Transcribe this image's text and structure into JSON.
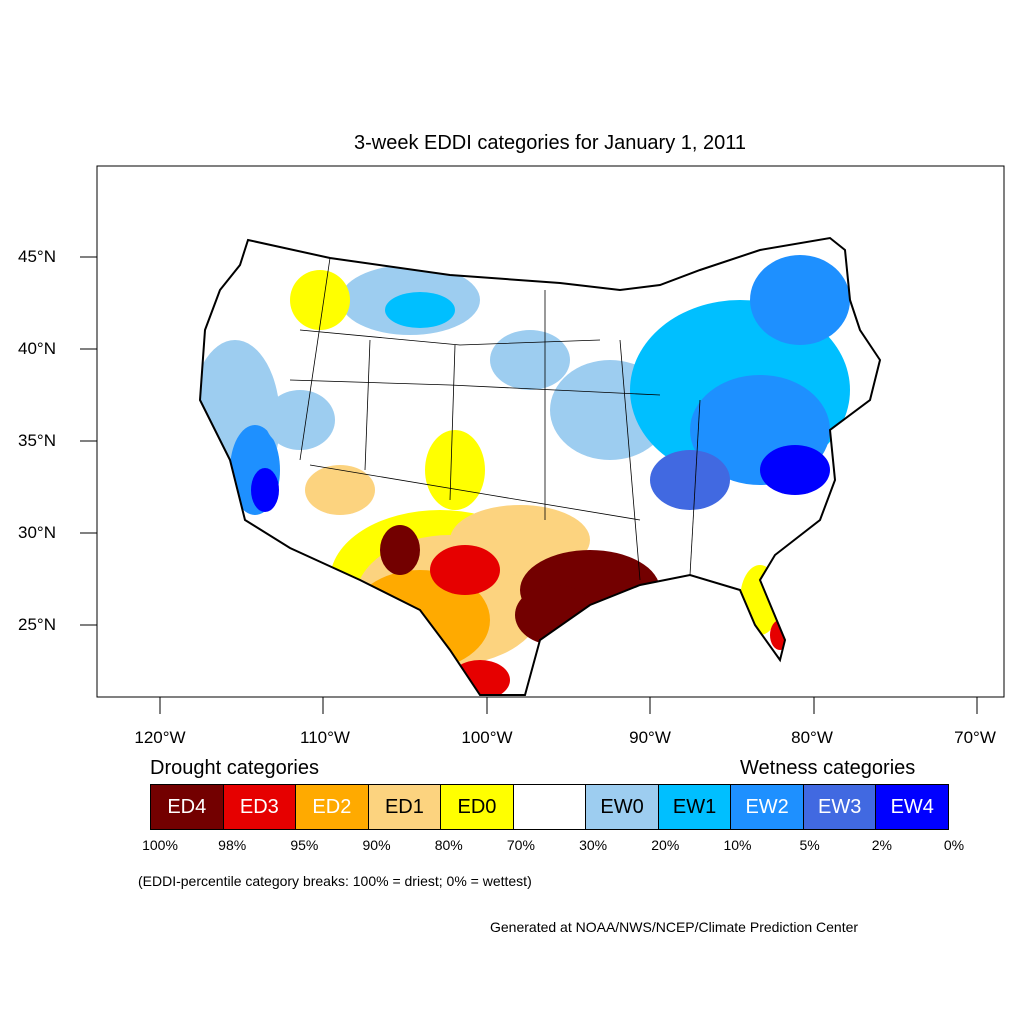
{
  "title": "3-week EDDI categories for January 1, 2011",
  "lat_labels": [
    "45°N",
    "40°N",
    "35°N",
    "30°N",
    "25°N"
  ],
  "lon_labels": [
    "120°W",
    "110°W",
    "100°W",
    "90°W",
    "80°W",
    "70°W"
  ],
  "legend": {
    "drought_heading": "Drought categories",
    "wetness_heading": "Wetness categories",
    "categories": [
      {
        "label": "ED4",
        "color": "#730000",
        "text_color": "#ffffff"
      },
      {
        "label": "ED3",
        "color": "#e60000",
        "text_color": "#ffffff"
      },
      {
        "label": "ED2",
        "color": "#ffaa00",
        "text_color": "#ffffff"
      },
      {
        "label": "ED1",
        "color": "#fcd37f",
        "text_color": "#000000"
      },
      {
        "label": "ED0",
        "color": "#ffff00",
        "text_color": "#000000"
      },
      {
        "label": "",
        "color": "#ffffff",
        "text_color": "#000000"
      },
      {
        "label": "EW0",
        "color": "#9dcdf0",
        "text_color": "#000000"
      },
      {
        "label": "EW1",
        "color": "#00bfff",
        "text_color": "#000000"
      },
      {
        "label": "EW2",
        "color": "#1e90ff",
        "text_color": "#ffffff"
      },
      {
        "label": "EW3",
        "color": "#4169e1",
        "text_color": "#ffffff"
      },
      {
        "label": "EW4",
        "color": "#0000ff",
        "text_color": "#ffffff"
      }
    ],
    "breaks": [
      "100%",
      "98%",
      "95%",
      "90%",
      "80%",
      "70%",
      "30%",
      "20%",
      "10%",
      "5%",
      "2%",
      "0%"
    ]
  },
  "note": "(EDDI-percentile category breaks: 100% = driest; 0% = wettest)",
  "credit": "Generated at NOAA/NWS/NCEP/Climate Prediction Center"
}
